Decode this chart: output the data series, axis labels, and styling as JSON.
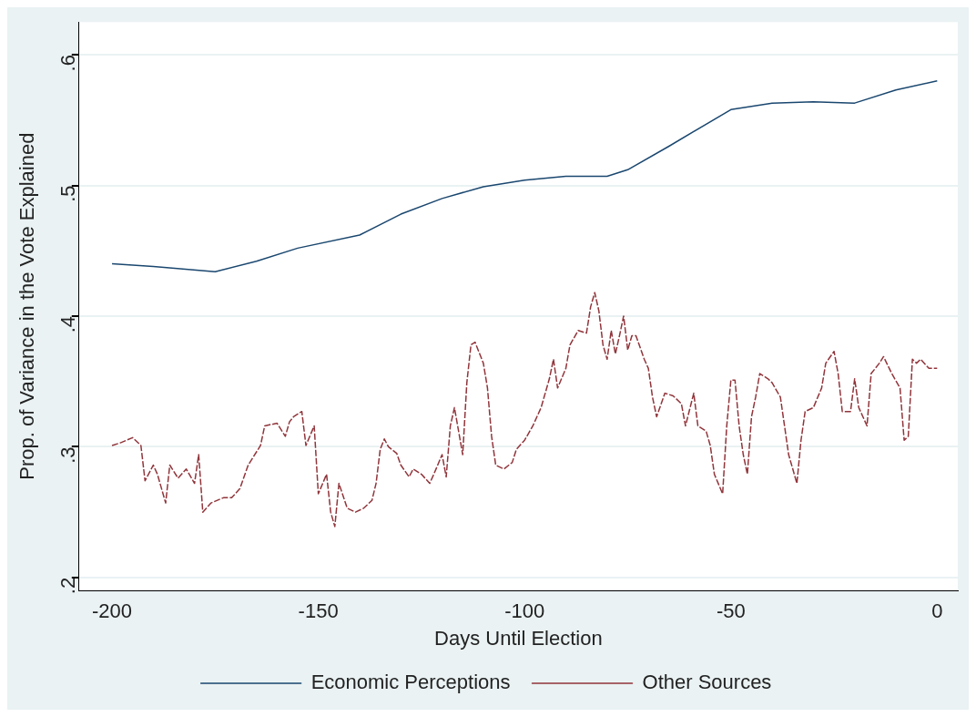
{
  "chart_data": {
    "type": "line",
    "xlabel": "Days Until Election",
    "ylabel": "Prop. of Variance in the Vote Explained",
    "xlim": [
      -208,
      5
    ],
    "xticks": [
      -200,
      -150,
      -100,
      -50,
      0
    ],
    "ylim": [
      0.19,
      0.625
    ],
    "yticks": [
      {
        "value": 0.2,
        "label": ".2"
      },
      {
        "value": 0.3,
        "label": ".3"
      },
      {
        "value": 0.4,
        "label": ".4"
      },
      {
        "value": 0.5,
        "label": ".5"
      },
      {
        "value": 0.6,
        "label": ".6"
      }
    ],
    "grid": "y",
    "legend": "bottom",
    "marker": "none",
    "series": [
      {
        "name": "Economic Perceptions",
        "color": "#1a476f",
        "line_style": "solid",
        "x": [
          -200,
          -190,
          -175,
          -165,
          -155,
          -140,
          -130,
          -120,
          -110,
          -100,
          -90,
          -80,
          -75,
          -65,
          -50,
          -40,
          -30,
          -20,
          -10,
          0
        ],
        "values": [
          0.44,
          0.438,
          0.434,
          0.442,
          0.452,
          0.462,
          0.478,
          0.49,
          0.499,
          0.504,
          0.507,
          0.507,
          0.512,
          0.53,
          0.558,
          0.563,
          0.564,
          0.563,
          0.573,
          0.58
        ]
      },
      {
        "name": "Other Sources",
        "color": "#90353b",
        "line_style": "dashed",
        "x": [
          -200,
          -198,
          -195,
          -193,
          -192,
          -190,
          -189,
          -187,
          -186,
          -184,
          -182,
          -180,
          -179,
          -178,
          -176,
          -173,
          -171,
          -169,
          -167,
          -164,
          -163,
          -160,
          -158,
          -157,
          -156,
          -154,
          -153,
          -151,
          -150,
          -148,
          -147,
          -146,
          -145,
          -143,
          -141,
          -139,
          -137,
          -136,
          -135,
          -134,
          -133,
          -131,
          -130,
          -128,
          -127,
          -125,
          -123,
          -122,
          -120,
          -119,
          -118,
          -117,
          -115,
          -114,
          -113,
          -112,
          -110,
          -109,
          -108,
          -107,
          -105,
          -103,
          -102,
          -100,
          -98,
          -96,
          -94,
          -93,
          -92,
          -90,
          -89,
          -87,
          -85,
          -84,
          -83,
          -82,
          -81,
          -80,
          -79,
          -78,
          -77,
          -76,
          -75,
          -74,
          -73,
          -71,
          -70,
          -69,
          -68,
          -66,
          -64,
          -62,
          -61,
          -59,
          -58,
          -56,
          -55,
          -54,
          -52,
          -51,
          -50,
          -49,
          -48,
          -47,
          -46,
          -45,
          -44,
          -43,
          -41,
          -40,
          -38,
          -37,
          -36,
          -34,
          -33,
          -32,
          -30,
          -28,
          -27,
          -25,
          -24,
          -23,
          -21,
          -20,
          -19,
          -17,
          -16,
          -14,
          -13,
          -11,
          -9,
          -8,
          -7,
          -6,
          -5,
          -4,
          -2,
          0
        ],
        "values": [
          0.301,
          0.303,
          0.307,
          0.301,
          0.274,
          0.286,
          0.279,
          0.257,
          0.286,
          0.276,
          0.283,
          0.272,
          0.294,
          0.25,
          0.257,
          0.261,
          0.261,
          0.268,
          0.286,
          0.301,
          0.316,
          0.318,
          0.308,
          0.319,
          0.323,
          0.327,
          0.301,
          0.316,
          0.264,
          0.279,
          0.25,
          0.239,
          0.272,
          0.253,
          0.25,
          0.253,
          0.259,
          0.272,
          0.298,
          0.306,
          0.3,
          0.295,
          0.286,
          0.277,
          0.283,
          0.279,
          0.272,
          0.279,
          0.294,
          0.277,
          0.316,
          0.33,
          0.294,
          0.349,
          0.378,
          0.38,
          0.364,
          0.345,
          0.308,
          0.286,
          0.283,
          0.288,
          0.298,
          0.305,
          0.316,
          0.33,
          0.352,
          0.367,
          0.345,
          0.36,
          0.378,
          0.389,
          0.387,
          0.407,
          0.418,
          0.404,
          0.378,
          0.367,
          0.389,
          0.371,
          0.385,
          0.4,
          0.374,
          0.385,
          0.385,
          0.367,
          0.36,
          0.338,
          0.323,
          0.341,
          0.339,
          0.333,
          0.316,
          0.341,
          0.316,
          0.312,
          0.301,
          0.279,
          0.264,
          0.316,
          0.351,
          0.351,
          0.316,
          0.294,
          0.279,
          0.323,
          0.338,
          0.356,
          0.352,
          0.349,
          0.338,
          0.316,
          0.294,
          0.272,
          0.305,
          0.327,
          0.33,
          0.345,
          0.364,
          0.373,
          0.356,
          0.327,
          0.327,
          0.352,
          0.33,
          0.316,
          0.356,
          0.364,
          0.369,
          0.356,
          0.345,
          0.305,
          0.308,
          0.367,
          0.364,
          0.367,
          0.36,
          0.36
        ]
      }
    ]
  }
}
